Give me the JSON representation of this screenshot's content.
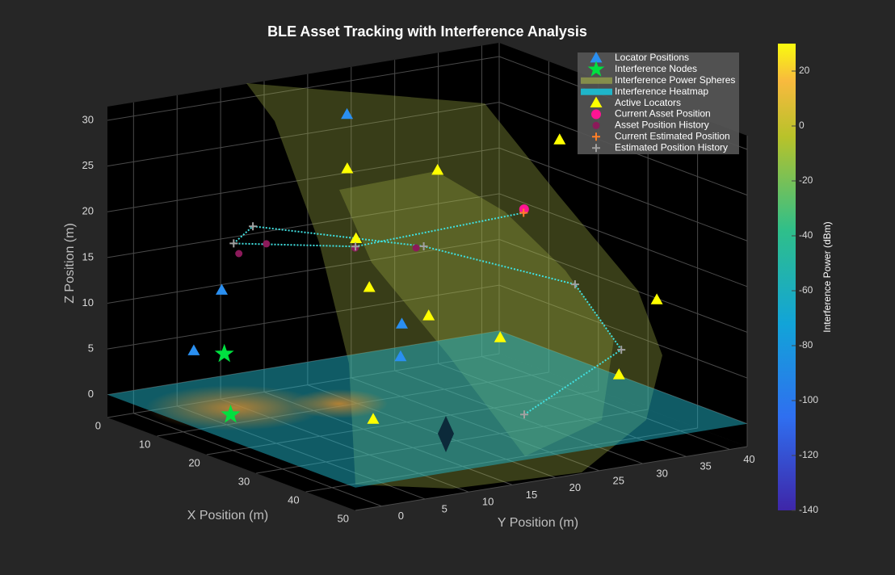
{
  "chart_data": {
    "type": "scatter3d",
    "title": "BLE Asset Tracking with Interference Analysis",
    "xlabel": "X Position (m)",
    "ylabel": "Y Position (m)",
    "zlabel": "Z Position (m)",
    "xlim": [
      0,
      50
    ],
    "ylim": [
      -3,
      42
    ],
    "zlim": [
      -2.5,
      31.5
    ],
    "xticks": [
      0,
      10,
      20,
      30,
      40,
      50
    ],
    "yticks": [
      0,
      5,
      10,
      15,
      20,
      25,
      30,
      35,
      40
    ],
    "zticks": [
      0,
      5,
      10,
      15,
      20,
      25,
      30
    ],
    "grid": true,
    "legend": "northeast",
    "series": [
      {
        "name": "Locator Positions",
        "color": "#2a8ff0",
        "marker": "triangle",
        "x": [
          6,
          9,
          12.5,
          19,
          14
        ],
        "y": [
          3.5,
          5,
          17.4,
          20,
          22.7
        ],
        "z": [
          5,
          12,
          30,
          8,
          3
        ]
      },
      {
        "name": "Interference Nodes",
        "color": "#00e040",
        "marker": "star",
        "x": [
          9,
          15
        ],
        "y": [
          5.3,
          2.6
        ],
        "z": [
          5,
          0
        ]
      },
      {
        "name": "Interference Power Spheres",
        "color": "#a9b84a",
        "marker": "surface"
      },
      {
        "name": "Interference Heatmap",
        "color": "#1fb5c9",
        "marker": "surface"
      },
      {
        "name": "Active Locators",
        "color": "#ffff00",
        "marker": "triangle",
        "x": [
          15.7,
          21.8,
          35,
          15,
          17,
          24.4,
          26.7,
          49.5,
          41,
          25.5
        ],
        "y": [
          15.6,
          22.5,
          29,
          17,
          17.4,
          20,
          26.9,
          31.9,
          32.4,
          13
        ],
        "z": [
          25,
          25,
          30,
          17,
          12,
          10,
          7,
          15,
          5,
          0
        ]
      },
      {
        "name": "Current Asset Position",
        "color": "#ff1493",
        "marker": "circle",
        "x": [
          24.5
        ],
        "y": [
          30.9
        ],
        "z": [
          20
        ]
      },
      {
        "name": "Asset Position History",
        "color": "#8b1a5a",
        "marker": "dot",
        "x": [
          10,
          8,
          15,
          18.7
        ],
        "y": [
          6.4,
          10.7,
          16.9,
          21.8
        ],
        "z": [
          16,
          16,
          16,
          16
        ]
      },
      {
        "name": "Current Estimated Position",
        "color": "#ff7f27",
        "marker": "plus",
        "x": [
          25.8
        ],
        "y": [
          30.1
        ],
        "z": [
          20
        ]
      },
      {
        "name": "Estimated Position History",
        "color": "#a0a0a0",
        "marker": "plus",
        "line_color": "#40e0e0",
        "x": [
          39.8,
          42,
          31.8,
          22,
          10.9,
          9.3,
          17.9
        ],
        "y": [
          22.2,
          32.1,
          32.6,
          20.8,
          7.5,
          6.2,
          15.3
        ],
        "z": [
          2,
          8,
          13,
          17,
          19,
          17,
          17
        ]
      }
    ],
    "colorbar": {
      "label": "Interference Power (dBm)",
      "clim": [
        -140,
        30
      ],
      "ticks": [
        20,
        0,
        -20,
        -40,
        -60,
        -80,
        -100,
        -120,
        -140
      ]
    }
  }
}
